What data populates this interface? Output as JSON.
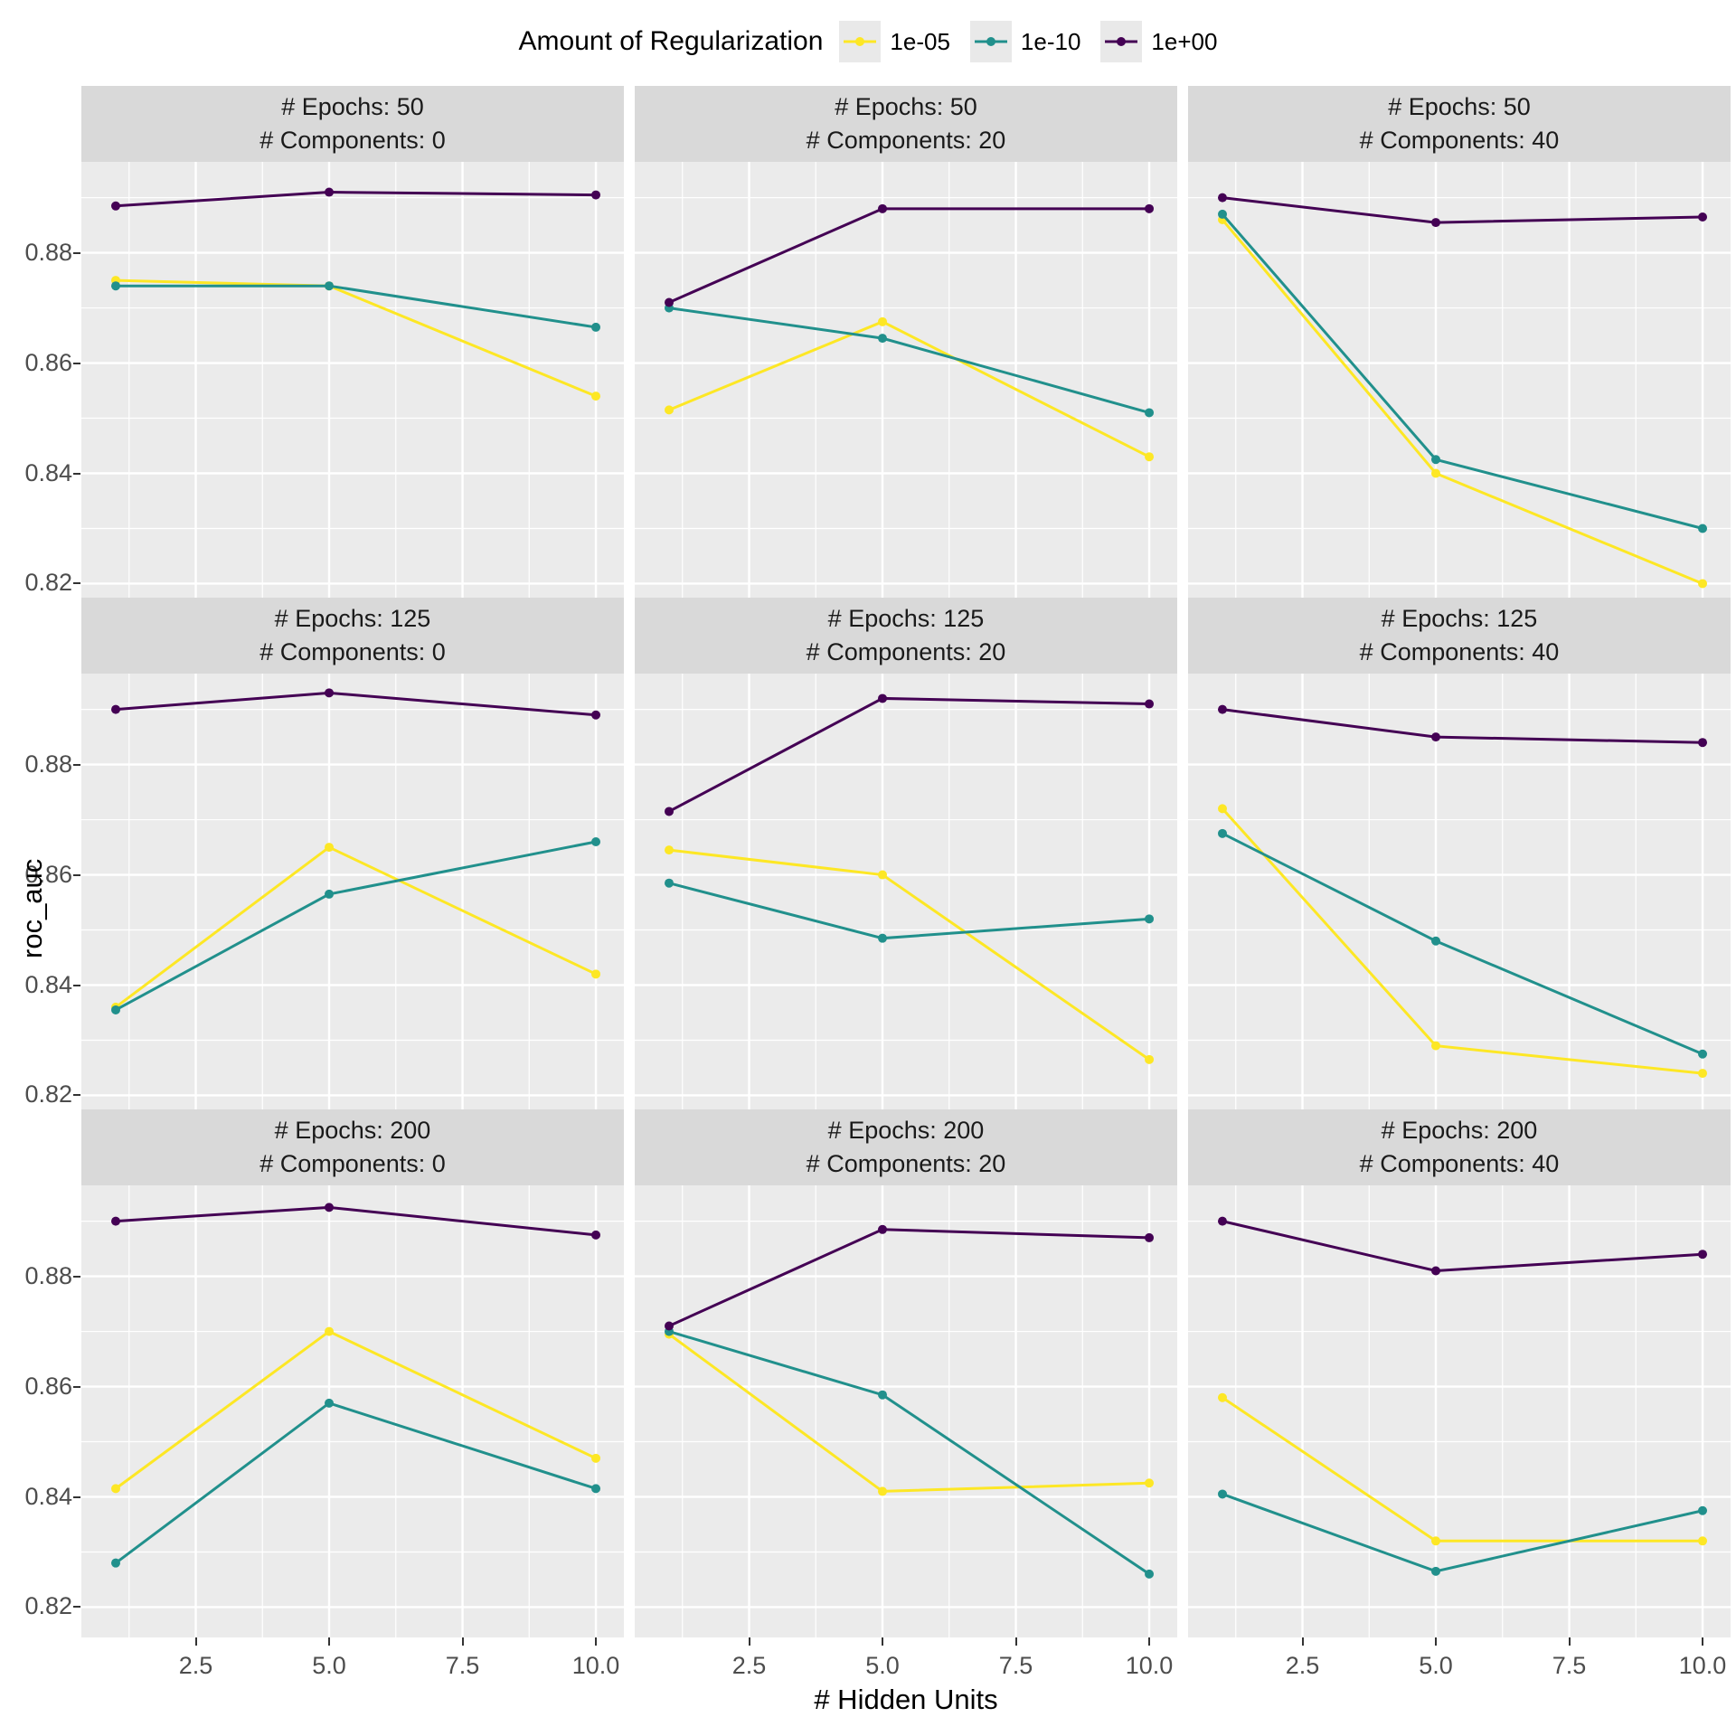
{
  "chart_data": {
    "type": "line",
    "legend_title": "Amount of Regularization",
    "xlabel": "# Hidden Units",
    "ylabel": "roc_auc",
    "x": [
      1,
      5,
      10
    ],
    "x_ticks": [
      2.5,
      5.0,
      7.5,
      10.0
    ],
    "x_tick_labels": [
      "2.5",
      "5.0",
      "7.5",
      "10.0"
    ],
    "y_ticks": [
      0.82,
      0.84,
      0.86,
      0.88
    ],
    "y_tick_labels": [
      "0.82",
      "0.84",
      "0.86",
      "0.88"
    ],
    "xlim": [
      0.356,
      10.525
    ],
    "ylim": [
      0.8145,
      0.8965
    ],
    "grid": "on",
    "legend_position": "top",
    "panel_background": "#ebebeb",
    "strip_background": "#d9d9d9",
    "gridline_color": "#ffffff",
    "series_names": [
      "1e-05",
      "1e-10",
      "1e+00"
    ],
    "colors": {
      "1e-05": "#FDE725",
      "1e-10": "#21908C",
      "1e+00": "#440154"
    },
    "facets": [
      {
        "strip_top": "# Epochs: 50",
        "strip_bottom": "# Components: 0",
        "series": {
          "1e-05": [
            0.875,
            0.874,
            0.854
          ],
          "1e-10": [
            0.874,
            0.874,
            0.8665
          ],
          "1e+00": [
            0.8885,
            0.891,
            0.8905
          ]
        }
      },
      {
        "strip_top": "# Epochs: 50",
        "strip_bottom": "# Components: 20",
        "series": {
          "1e-05": [
            0.8515,
            0.8675,
            0.843
          ],
          "1e-10": [
            0.87,
            0.8645,
            0.851
          ],
          "1e+00": [
            0.871,
            0.888,
            0.888
          ]
        }
      },
      {
        "strip_top": "# Epochs: 50",
        "strip_bottom": "# Components: 40",
        "series": {
          "1e-05": [
            0.886,
            0.84,
            0.82
          ],
          "1e-10": [
            0.887,
            0.8425,
            0.83
          ],
          "1e+00": [
            0.89,
            0.8855,
            0.8865
          ]
        }
      },
      {
        "strip_top": "# Epochs: 125",
        "strip_bottom": "# Components: 0",
        "series": {
          "1e-05": [
            0.836,
            0.865,
            0.842
          ],
          "1e-10": [
            0.8355,
            0.8565,
            0.866
          ],
          "1e+00": [
            0.89,
            0.893,
            0.889
          ]
        }
      },
      {
        "strip_top": "# Epochs: 125",
        "strip_bottom": "# Components: 20",
        "series": {
          "1e-05": [
            0.8645,
            0.86,
            0.8265
          ],
          "1e-10": [
            0.8585,
            0.8485,
            0.852
          ],
          "1e+00": [
            0.8715,
            0.892,
            0.891
          ]
        }
      },
      {
        "strip_top": "# Epochs: 125",
        "strip_bottom": "# Components: 40",
        "series": {
          "1e-05": [
            0.872,
            0.829,
            0.824
          ],
          "1e-10": [
            0.8675,
            0.848,
            0.8275
          ],
          "1e+00": [
            0.89,
            0.885,
            0.884
          ]
        }
      },
      {
        "strip_top": "# Epochs: 200",
        "strip_bottom": "# Components: 0",
        "series": {
          "1e-05": [
            0.8415,
            0.87,
            0.847
          ],
          "1e-10": [
            0.828,
            0.857,
            0.8415
          ],
          "1e+00": [
            0.89,
            0.8925,
            0.8875
          ]
        }
      },
      {
        "strip_top": "# Epochs: 200",
        "strip_bottom": "# Components: 20",
        "series": {
          "1e-05": [
            0.8695,
            0.841,
            0.8425
          ],
          "1e-10": [
            0.87,
            0.8585,
            0.826
          ],
          "1e+00": [
            0.871,
            0.8885,
            0.887
          ]
        }
      },
      {
        "strip_top": "# Epochs: 200",
        "strip_bottom": "# Components: 40",
        "series": {
          "1e-05": [
            0.858,
            0.832,
            0.832
          ],
          "1e-10": [
            0.8405,
            0.8265,
            0.8375
          ],
          "1e+00": [
            0.89,
            0.881,
            0.884
          ]
        }
      }
    ]
  }
}
